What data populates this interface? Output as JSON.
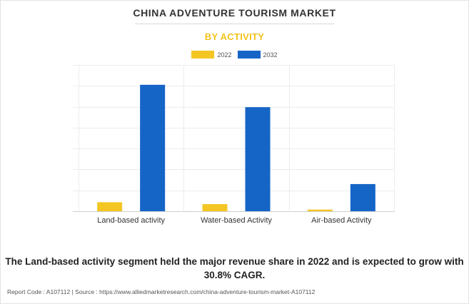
{
  "title": "CHINA ADVENTURE TOURISM MARKET",
  "subtitle": "BY ACTIVITY",
  "footnote": "The Land-based activity segment held the major revenue share in 2022 and is expected to grow with 30.8% CAGR.",
  "source": "Report Code : A107112  |  Source : https://www.alliedmarketresearch.com/china-adventure-tourism-market-A107112",
  "colors": {
    "2022": "#f4c623",
    "2032": "#1565c7"
  },
  "chart_data": {
    "type": "bar",
    "title": "CHINA ADVENTURE TOURISM MARKET",
    "subtitle": "BY ACTIVITY",
    "categories": [
      "Land-based activity",
      "Water-based Activity",
      "Air-based Activity"
    ],
    "series": [
      {
        "name": "2022",
        "values": [
          4.3,
          3.4,
          0.8
        ]
      },
      {
        "name": "2032",
        "values": [
          60.5,
          49.8,
          13.0
        ]
      }
    ],
    "ylim": [
      0,
      70
    ],
    "yticks": [
      0,
      10,
      20,
      30,
      40,
      50,
      60,
      70
    ],
    "ytick_labels_visible": false,
    "grid": true,
    "legend_position": "top-center"
  }
}
